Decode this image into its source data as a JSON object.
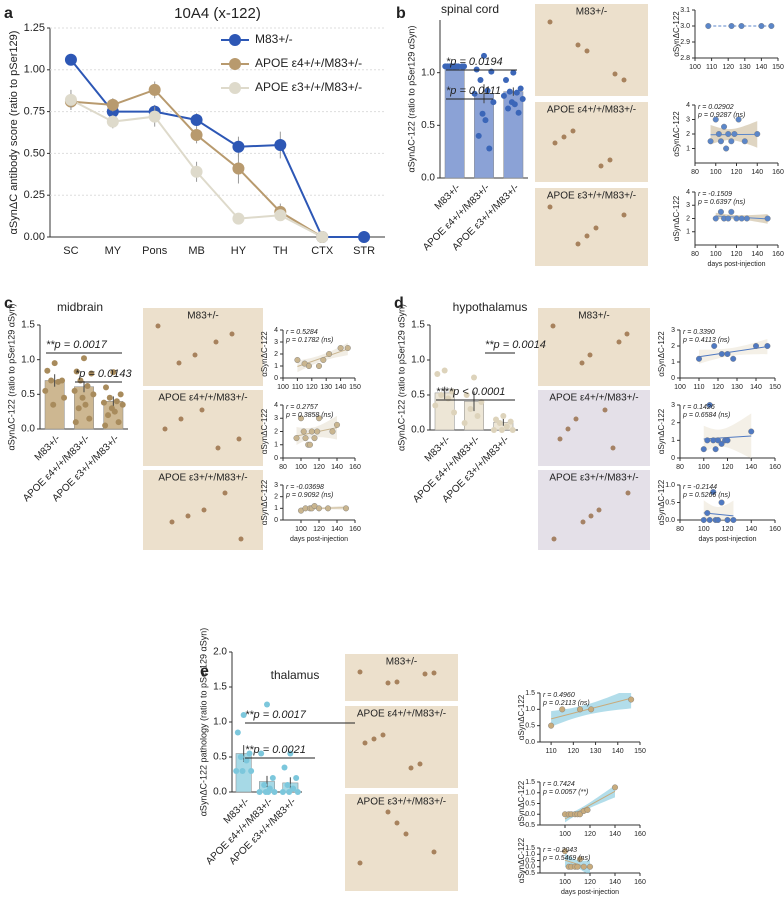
{
  "figure": {
    "panels": [
      {
        "letter": "a"
      },
      {
        "letter": "b",
        "images": [
          "M83+/-",
          "APOE ε4+/+/M83+/-",
          "APOE ε3+/+/M83+/-"
        ]
      },
      {
        "letter": "c",
        "images": [
          "M83+/-",
          "APOE ε4+/+/M83+/-",
          "APOE ε3+/+/M83+/-"
        ]
      },
      {
        "letter": "d",
        "images": [
          "M83+/-",
          "APOE ε4+/+/M83+/-",
          "APOE ε3+/+/M83+/-"
        ]
      },
      {
        "letter": "e",
        "images": [
          "M83+/-",
          "APOE ε4+/+/M83+/-",
          "APOE ε3+/+/M83+/-"
        ]
      }
    ]
  },
  "chart_data": [
    {
      "type": "line",
      "title": "10A4 (x-122)",
      "ylabel": "αSynΔC antibody score (ratio to pSer129)",
      "categories": [
        "SC",
        "MY",
        "Pons",
        "MB",
        "HY",
        "TH",
        "CTX",
        "STR"
      ],
      "series": [
        {
          "name": "M83+/-",
          "color": "#2d57b5",
          "values": [
            1.06,
            0.75,
            0.75,
            0.7,
            0.54,
            0.55,
            0,
            0
          ],
          "errors": [
            0,
            0.03,
            0.04,
            0.04,
            0.06,
            0.08,
            0,
            0
          ]
        },
        {
          "name": "APOE ε4+/+/M83+/-",
          "color": "#b89a6e",
          "values": [
            0.81,
            0.79,
            0.88,
            0.61,
            0.41,
            0.15,
            0,
            null
          ],
          "errors": [
            0.05,
            0.04,
            0.05,
            0.05,
            0.09,
            0.05,
            0,
            null
          ]
        },
        {
          "name": "APOE ε3+/+/M83+/-",
          "color": "#dedacb",
          "values": [
            0.82,
            0.69,
            0.72,
            0.39,
            0.11,
            0.13,
            0,
            null
          ],
          "errors": [
            0.06,
            0.04,
            0.06,
            0.06,
            0.03,
            0.03,
            0,
            null
          ]
        }
      ],
      "ylim": [
        0,
        1.25
      ],
      "yticks": [
        {
          "value": 0,
          "label": "0.00"
        },
        0.25,
        {
          "value": 0.5,
          "label": "0.50"
        },
        0.75,
        {
          "value": 1,
          "label": "1.00"
        },
        1.25
      ],
      "grid": true,
      "legend": "upper right"
    },
    {
      "type": "bar",
      "title": "spinal cord",
      "ylabel": "αSynΔC-122 (ratio to pSer129 αSyn)",
      "categories": [
        "M83+/-",
        "APOE ε4+/+/M83+/-",
        "APOE ε3+/+/M83+/-"
      ],
      "values": [
        1.06,
        0.8,
        0.82
      ],
      "errors": [
        0,
        0.09,
        0.04
      ],
      "points": [
        [
          1.06,
          1.06,
          1.06,
          1.06,
          1.06,
          1.06,
          1.06,
          1.06,
          1.06,
          1.06
        ],
        [
          1.16,
          1.03,
          1.01,
          0.93,
          0.83,
          0.8,
          0.72,
          0.61,
          0.55,
          0.4,
          0.28
        ],
        [
          1.0,
          0.93,
          0.85,
          0.82,
          0.81,
          0.78,
          0.75,
          0.72,
          0.7,
          0.66,
          0.62
        ]
      ],
      "color": "#8ba2d6",
      "point_color": "#3b66b8",
      "ylim": [
        0,
        1.5
      ],
      "yticks": [
        {
          "value": 0,
          "label": "0.0"
        },
        0.5,
        {
          "value": 1,
          "label": "1.0"
        }
      ],
      "annotations": [
        "*p = 0.0194",
        "*p = 0.0111"
      ]
    },
    {
      "type": "scatter",
      "ylabel": "αSynΔC-122",
      "x": [
        108,
        122,
        128,
        140,
        146
      ],
      "y": [
        3,
        3,
        3,
        3,
        3
      ],
      "xlim": [
        100,
        150
      ],
      "xticks": [
        100,
        110,
        120,
        130,
        140,
        150
      ],
      "ylim": [
        2.8,
        3.1
      ],
      "yticks": [
        2.8,
        2.9,
        {
          "value": 3,
          "label": "3.0"
        },
        3.1
      ],
      "color": "#5b86c9",
      "band_color": "#c9b99a"
    },
    {
      "type": "scatter",
      "ylabel": "αSynΔC-122",
      "x": [
        95,
        100,
        103,
        105,
        108,
        110,
        112,
        115,
        118,
        122,
        128,
        140
      ],
      "y": [
        1.5,
        3,
        2,
        1.5,
        2.5,
        1,
        2,
        1.5,
        2,
        3,
        1.5,
        2
      ],
      "xlim": [
        80,
        160
      ],
      "xticks": [
        80,
        100,
        120,
        140,
        160
      ],
      "ylim": [
        0,
        4
      ],
      "yticks": [
        1,
        2,
        3,
        4
      ],
      "annotations": [
        "r = 0.02902",
        "p = 0.9287 (ns)"
      ],
      "color": "#5b86c9",
      "band_color": "#c9b99a"
    },
    {
      "type": "scatter",
      "ylabel": "αSynΔC-122",
      "xlabel": "days post-injection",
      "x": [
        100,
        105,
        108,
        112,
        115,
        120,
        125,
        130,
        150
      ],
      "y": [
        2,
        2.5,
        2,
        2,
        2.5,
        2,
        2,
        2,
        2
      ],
      "xlim": [
        80,
        160
      ],
      "xticks": [
        80,
        100,
        120,
        140,
        160
      ],
      "ylim": [
        0,
        4
      ],
      "yticks": [
        1,
        2,
        3,
        4
      ],
      "annotations": [
        "r = -0.1509",
        "p = 0.6397 (ns)"
      ],
      "color": "#5b86c9",
      "band_color": "#c9b99a"
    },
    {
      "type": "bar",
      "title": "midbrain",
      "ylabel": "αSynΔC-122 (ratio to pSer129 αSyn)",
      "categories": [
        "M83+/-",
        "APOE ε4+/+/M83+/-",
        "APOE ε3+/+/M83+/-"
      ],
      "values": [
        0.7,
        0.61,
        0.4
      ],
      "errors": [
        0.09,
        0.08,
        0.07
      ],
      "points": [
        [
          0.95,
          0.84,
          0.7,
          0.7,
          0.68,
          0.55,
          0.45,
          0.35
        ],
        [
          1.02,
          0.83,
          0.8,
          0.7,
          0.62,
          0.55,
          0.5,
          0.45,
          0.35,
          0.3,
          0.15,
          0.1
        ],
        [
          0.82,
          0.6,
          0.5,
          0.45,
          0.4,
          0.38,
          0.35,
          0.3,
          0.25,
          0.2,
          0.1,
          0.05
        ]
      ],
      "color": "#cdb791",
      "point_color": "#a88b5c",
      "ylim": [
        0,
        1.5
      ],
      "yticks": [
        {
          "value": 0,
          "label": "0.0"
        },
        0.5,
        {
          "value": 1,
          "label": "1.0"
        },
        1.5
      ],
      "annotations": [
        "**p = 0.0017",
        "*p = 0.0143"
      ]
    },
    {
      "type": "scatter",
      "ylabel": "αSynΔC-122",
      "x": [
        110,
        115,
        118,
        125,
        128,
        132,
        140,
        145
      ],
      "y": [
        1.5,
        1.2,
        1,
        1,
        1.5,
        2,
        2.5,
        2.5
      ],
      "xlim": [
        100,
        150
      ],
      "xticks": [
        100,
        110,
        120,
        130,
        140,
        150
      ],
      "ylim": [
        0,
        4
      ],
      "yticks": [
        0,
        1,
        2,
        3,
        4
      ],
      "annotations": [
        "r = 0.5284",
        "p = 0.1782 (ns)"
      ],
      "color": "#c9b58f",
      "band_color": "#e8e1d2"
    },
    {
      "type": "scatter",
      "ylabel": "αSynΔC-122",
      "x": [
        95,
        100,
        103,
        105,
        108,
        110,
        112,
        115,
        118,
        120,
        135,
        140
      ],
      "y": [
        1.5,
        3,
        2,
        1.5,
        1,
        1,
        2,
        1.5,
        2,
        3,
        2,
        2.5
      ],
      "xlim": [
        80,
        160
      ],
      "xticks": [
        80,
        100,
        120,
        140,
        160
      ],
      "ylim": [
        0,
        4
      ],
      "yticks": [
        0,
        1,
        2,
        3,
        4
      ],
      "annotations": [
        "r = 0.2757",
        "p = 0.3858 (ns)"
      ],
      "color": "#c9b58f",
      "band_color": "#e8e1d2"
    },
    {
      "type": "scatter",
      "ylabel": "αSynΔC-122",
      "xlabel": "days post-injection",
      "x": [
        100,
        105,
        110,
        112,
        115,
        120,
        130,
        150
      ],
      "y": [
        0.8,
        1,
        1,
        1,
        1.2,
        1,
        1,
        1
      ],
      "xlim": [
        80,
        160
      ],
      "xticks": [
        100,
        120,
        140,
        160
      ],
      "ylim": [
        0,
        3
      ],
      "yticks": [
        0,
        1,
        2,
        3
      ],
      "annotations": [
        "r = -0.03698",
        "p = 0.9092 (ns)"
      ],
      "color": "#c9b58f",
      "band_color": "#e8e1d2"
    },
    {
      "type": "bar",
      "title": "hypothalamus",
      "ylabel": "αSynΔC-122 (ratio to pSer129 αSyn)",
      "categories": [
        "M83+/-",
        "APOE ε4+/+/M83+/-",
        "APOE ε3+/+/M83+/-"
      ],
      "values": [
        0.53,
        0.41,
        0.11
      ],
      "errors": [
        0.09,
        0.14,
        0.05
      ],
      "points": [
        [
          0.85,
          0.8,
          0.55,
          0.5,
          0.45,
          0.35,
          0.25
        ],
        [
          0.75,
          0.5,
          0.4,
          0.3,
          0.2,
          0.1
        ],
        [
          0.2,
          0.15,
          0.12,
          0.1,
          0.05,
          0,
          0,
          0
        ]
      ],
      "color": "#ede6d6",
      "point_color": "#ddd3bb",
      "ylim": [
        0,
        1.5
      ],
      "yticks": [
        {
          "value": 0,
          "label": "0.0"
        },
        0.5,
        {
          "value": 1,
          "label": "1.0"
        },
        1.5
      ],
      "annotations": [
        "**p = 0.0014",
        "****p < 0.0001"
      ]
    },
    {
      "type": "scatter",
      "ylabel": "αSynΔC-122",
      "x": [
        110,
        118,
        122,
        125,
        128,
        140,
        146
      ],
      "y": [
        1.2,
        2,
        1.5,
        1.5,
        1.2,
        2,
        2
      ],
      "xlim": [
        100,
        150
      ],
      "xticks": [
        100,
        110,
        120,
        130,
        140,
        150
      ],
      "ylim": [
        0,
        3
      ],
      "yticks": [
        0,
        1,
        2,
        3
      ],
      "annotations": [
        "r = 0.3390",
        "p = 0.4113 (ns)"
      ],
      "color": "#4f79c2",
      "band_color": "#ece6d7"
    },
    {
      "type": "scatter",
      "ylabel": "αSynΔC-122",
      "x": [
        100,
        103,
        105,
        108,
        110,
        112,
        115,
        118,
        120,
        140
      ],
      "y": [
        0.5,
        1,
        3,
        1,
        0.5,
        1,
        0.8,
        1,
        1,
        1.5
      ],
      "xlim": [
        80,
        160
      ],
      "xticks": [
        80,
        100,
        120,
        140,
        160
      ],
      "ylim": [
        0,
        3
      ],
      "yticks": [
        0,
        1,
        2,
        3
      ],
      "annotations": [
        "r = 0.1426",
        "p = 0.6584 (ns)"
      ],
      "color": "#4f79c2",
      "band_color": "#ece6d7"
    },
    {
      "type": "scatter",
      "ylabel": "αSynΔC-122",
      "xlabel": "days post-injection",
      "x": [
        100,
        103,
        105,
        108,
        110,
        112,
        115,
        120,
        125
      ],
      "y": [
        0,
        0.2,
        0,
        0.8,
        0,
        0,
        0.5,
        0,
        0
      ],
      "xlim": [
        80,
        160
      ],
      "xticks": [
        80,
        100,
        120,
        140,
        160
      ],
      "ylim": [
        0,
        1
      ],
      "yticks": [
        {
          "value": 0,
          "label": "0.0"
        },
        0.5,
        {
          "value": 1,
          "label": "1.0"
        }
      ],
      "annotations": [
        "r = -0.2144",
        "p = 0.5266 (ns)"
      ],
      "color": "#4f79c2",
      "band_color": "#ece6d7"
    },
    {
      "type": "bar",
      "title": "thalamus",
      "ylabel": "αSynΔC-122 pathology (ratio to pSer129 αSyn)",
      "categories": [
        "M83+/-",
        "APOE ε4+/+/M83+/-",
        "APOE ε3+/+/M83+/-"
      ],
      "values": [
        0.55,
        0.15,
        0.13
      ],
      "errors": [
        0.12,
        0.08,
        0.08
      ],
      "points": [
        [
          1.1,
          0.85,
          0.55,
          0.5,
          0.45,
          0.3,
          0.3,
          0.3
        ],
        [
          1.25,
          0.55,
          0.2,
          0.1,
          0.05,
          0,
          0,
          0,
          0
        ],
        [
          0.55,
          0.35,
          0.2,
          0.1,
          0.05,
          0,
          0,
          0
        ]
      ],
      "color": "#a6d9e6",
      "point_color": "#7cc7dc",
      "ylim": [
        0,
        2
      ],
      "yticks": [
        {
          "value": 0,
          "label": "0.0"
        },
        0.5,
        {
          "value": 1,
          "label": "1.0"
        },
        1.5,
        {
          "value": 2,
          "label": "2.0"
        }
      ],
      "annotations": [
        "**p = 0.0017",
        "**p = 0.0021"
      ]
    },
    {
      "type": "scatter",
      "ylabel": "αSynΔC-122",
      "x": [
        110,
        115,
        123,
        128,
        146
      ],
      "y": [
        0.5,
        1,
        1,
        1,
        1.3
      ],
      "xlim": [
        105,
        150
      ],
      "xticks": [
        110,
        120,
        130,
        140,
        150
      ],
      "ylim": [
        0,
        1.5
      ],
      "yticks": [
        {
          "value": 0,
          "label": "0.0"
        },
        0.5,
        {
          "value": 1,
          "label": "1.0"
        },
        1.5
      ],
      "annotations": [
        "r = 0.4960",
        "p = 0.2113 (ns)"
      ],
      "color": "#c8ab7c",
      "band_color": "#7ec6dc"
    },
    {
      "type": "scatter",
      "ylabel": "αSynΔC-122",
      "x": [
        100,
        103,
        105,
        108,
        110,
        112,
        115,
        118,
        140
      ],
      "y": [
        0,
        0,
        0,
        0,
        0,
        0,
        0.15,
        0.2,
        1.25
      ],
      "xlim": [
        80,
        160
      ],
      "xticks": [
        100,
        120,
        140,
        160
      ],
      "ylim": [
        -0.5,
        1.5
      ],
      "yticks": [
        -0.5,
        {
          "value": 0,
          "label": "0.0"
        },
        0.5,
        {
          "value": 1,
          "label": "1.0"
        },
        1.5
      ],
      "annotations": [
        "r = 0.7424",
        "p = 0.0057 (**)"
      ],
      "color": "#c8ab7c",
      "band_color": "#7ec6dc"
    },
    {
      "type": "scatter",
      "ylabel": "αSynΔC-122",
      "xlabel": "days post-injection",
      "x": [
        100,
        103,
        105,
        108,
        110,
        112,
        115,
        120
      ],
      "y": [
        1.25,
        0,
        0,
        0,
        0,
        0.6,
        0,
        0
      ],
      "xlim": [
        80,
        160
      ],
      "xticks": [
        100,
        120,
        140,
        160
      ],
      "ylim": [
        -0.5,
        1.5
      ],
      "yticks": [
        -0.5,
        {
          "value": 0,
          "label": "0.0"
        },
        0.5,
        {
          "value": 1,
          "label": "1.0"
        },
        1.5
      ],
      "annotations": [
        "r = -0.2043",
        "p = 0.5469 (ns)"
      ],
      "color": "#c8ab7c",
      "band_color": "#7ec6dc"
    }
  ]
}
